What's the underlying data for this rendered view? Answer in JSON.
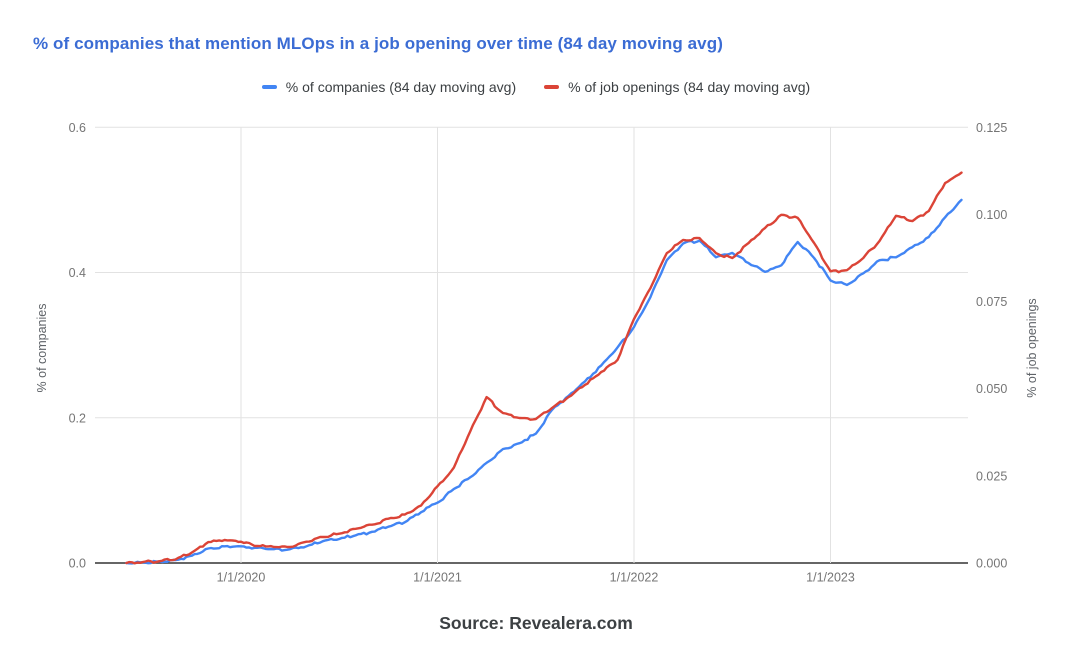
{
  "title": "% of companies that mention MLOps in a job opening over time (84 day moving avg)",
  "source": "Source: Revealera.com",
  "colors": {
    "title": "#3b6cd4",
    "companies_line": "#4285f4",
    "job_openings_line": "#db4437",
    "grid": "#e2e2e2",
    "axis_line": "#333333",
    "tick_label": "#757575",
    "axis_title": "#5f6368",
    "legend_text": "#3c4043",
    "source_text": "#3c4043",
    "background": "#ffffff"
  },
  "legend": {
    "items": [
      {
        "label": "% of companies (84 day moving avg)",
        "color": "#4285f4"
      },
      {
        "label": "% of job openings (84 day moving avg)",
        "color": "#db4437"
      }
    ]
  },
  "chart_data": {
    "type": "line",
    "title": "% of companies that mention MLOps in a job opening over time (84 day moving avg)",
    "grid": true,
    "legend_position": "top",
    "x": [
      "2019-06",
      "2019-07",
      "2019-08",
      "2019-09",
      "2019-10",
      "2019-11",
      "2019-12",
      "2020-01",
      "2020-02",
      "2020-03",
      "2020-04",
      "2020-05",
      "2020-06",
      "2020-07",
      "2020-08",
      "2020-09",
      "2020-10",
      "2020-11",
      "2020-12",
      "2021-01",
      "2021-02",
      "2021-03",
      "2021-04",
      "2021-05",
      "2021-06",
      "2021-07",
      "2021-08",
      "2021-09",
      "2021-10",
      "2021-11",
      "2021-12",
      "2022-01",
      "2022-02",
      "2022-03",
      "2022-04",
      "2022-05",
      "2022-06",
      "2022-07",
      "2022-08",
      "2022-09",
      "2022-10",
      "2022-11",
      "2022-12",
      "2023-01",
      "2023-02",
      "2023-03",
      "2023-04",
      "2023-05",
      "2023-06",
      "2023-07",
      "2023-08",
      "2023-09"
    ],
    "series": [
      {
        "name": "% of companies (84 day moving avg)",
        "axis": "left",
        "color": "#4285f4",
        "values": [
          0.0,
          0.001,
          0.002,
          0.004,
          0.01,
          0.02,
          0.023,
          0.023,
          0.021,
          0.019,
          0.019,
          0.023,
          0.03,
          0.033,
          0.038,
          0.043,
          0.05,
          0.056,
          0.07,
          0.083,
          0.102,
          0.118,
          0.138,
          0.157,
          0.165,
          0.178,
          0.211,
          0.23,
          0.25,
          0.272,
          0.297,
          0.325,
          0.366,
          0.417,
          0.44,
          0.444,
          0.421,
          0.427,
          0.413,
          0.401,
          0.41,
          0.442,
          0.42,
          0.389,
          0.383,
          0.399,
          0.417,
          0.421,
          0.435,
          0.449,
          0.476,
          0.5
        ]
      },
      {
        "name": "% of job openings (84 day moving avg)",
        "axis": "right",
        "color": "#db4437",
        "values": [
          0.0,
          0.0003,
          0.0005,
          0.001,
          0.003,
          0.006,
          0.0066,
          0.0061,
          0.0049,
          0.0046,
          0.0046,
          0.0061,
          0.0075,
          0.0084,
          0.0098,
          0.011,
          0.0127,
          0.0139,
          0.0165,
          0.022,
          0.0274,
          0.0378,
          0.0476,
          0.043,
          0.0416,
          0.0413,
          0.0445,
          0.0476,
          0.0511,
          0.0548,
          0.0583,
          0.07,
          0.0788,
          0.0889,
          0.0927,
          0.0932,
          0.0889,
          0.0875,
          0.0918,
          0.0961,
          0.0999,
          0.099,
          0.0918,
          0.0837,
          0.084,
          0.0875,
          0.0924,
          0.0996,
          0.0981,
          0.101,
          0.109,
          0.112
        ]
      }
    ],
    "left_axis": {
      "title": "% of companies",
      "ticks": [
        "0.0",
        "0.2",
        "0.4",
        "0.6"
      ],
      "range": [
        0,
        0.6
      ]
    },
    "right_axis": {
      "title": "% of job openings",
      "ticks": [
        "0.000",
        "0.025",
        "0.050",
        "0.075",
        "0.100",
        "0.125"
      ],
      "range": [
        0,
        0.125
      ]
    },
    "x_axis": {
      "ticks": [
        "1/1/2020",
        "1/1/2021",
        "1/1/2022",
        "1/1/2023"
      ]
    }
  }
}
